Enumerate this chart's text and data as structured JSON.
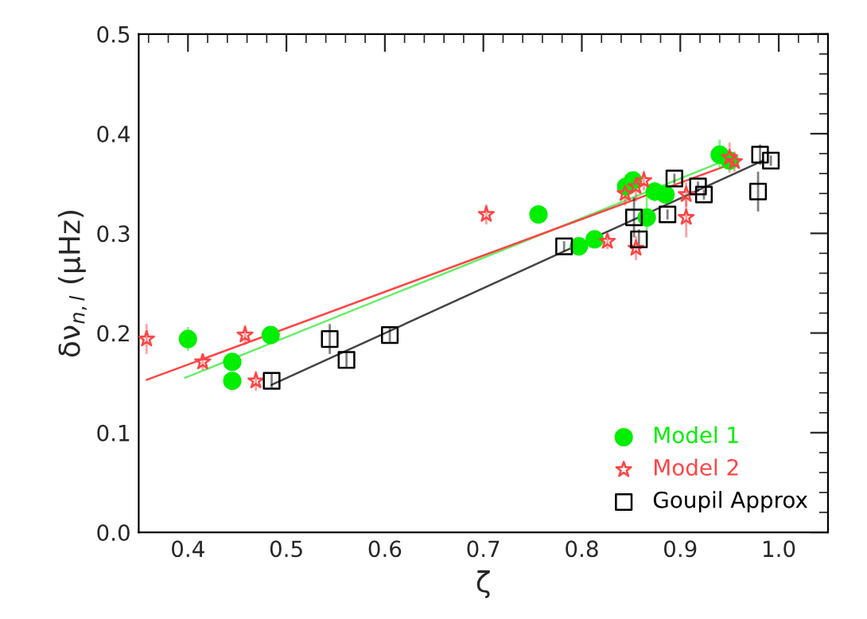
{
  "chart_data": {
    "type": "scatter",
    "xlabel": "ζ",
    "ylabel": "δν$_{n,l}$ (μHz)",
    "xlim": [
      0.35,
      1.05
    ],
    "ylim": [
      0,
      0.5
    ],
    "xticks": [
      {
        "value": 0.4,
        "label": "0.4"
      },
      {
        "value": 0.5,
        "label": "0.5"
      },
      {
        "value": 0.6,
        "label": "0.6"
      },
      {
        "value": 0.7,
        "label": "0.7"
      },
      {
        "value": 0.8,
        "label": "0.8"
      },
      {
        "value": 0.9,
        "label": "0.9"
      },
      {
        "value": 1.0,
        "label": "1.0"
      }
    ],
    "yticks": [
      {
        "value": 0,
        "label": "0.0"
      },
      {
        "value": 0.1,
        "label": "0.1"
      },
      {
        "value": 0.2,
        "label": "0.2"
      },
      {
        "value": 0.3,
        "label": "0.3"
      },
      {
        "value": 0.4,
        "label": "0.4"
      },
      {
        "value": 0.5,
        "label": "0.5"
      }
    ],
    "grid": false,
    "legend": "bottom right",
    "series": [
      {
        "name": "Model 1",
        "color": "#00ee00",
        "marker": "circle",
        "x": [
          0.4,
          0.445,
          0.445,
          0.484,
          0.756,
          0.797,
          0.813,
          0.845,
          0.852,
          0.874,
          0.866,
          0.885,
          0.94,
          0.95
        ],
        "values": [
          0.194,
          0.171,
          0.152,
          0.198,
          0.319,
          0.287,
          0.294,
          0.347,
          0.353,
          0.342,
          0.316,
          0.339,
          0.379,
          0.373
        ],
        "errors": [
          0.012,
          0.008,
          0.008,
          0.008,
          0.008,
          0.008,
          0.008,
          0.012,
          0.008,
          0.01,
          0.025,
          0.008,
          0.015,
          0.008
        ]
      },
      {
        "name": "Model 2",
        "color": "#ff4444",
        "marker": "star",
        "x": [
          0.358,
          0.415,
          0.458,
          0.469,
          0.703,
          0.826,
          0.844,
          0.855,
          0.863,
          0.855,
          0.906,
          0.906,
          0.95,
          0.955
        ],
        "values": [
          0.194,
          0.171,
          0.198,
          0.152,
          0.319,
          0.292,
          0.34,
          0.347,
          0.353,
          0.285,
          0.339,
          0.316,
          0.376,
          0.372
        ],
        "errors": [
          0.015,
          0.008,
          0.01,
          0.01,
          0.01,
          0.008,
          0.012,
          0.015,
          0.01,
          0.012,
          0.012,
          0.02,
          0.015,
          0.01
        ]
      },
      {
        "name": "Goupil Approx",
        "color": "#000000",
        "marker": "square",
        "x": [
          0.485,
          0.544,
          0.561,
          0.605,
          0.782,
          0.853,
          0.858,
          0.894,
          0.887,
          0.918,
          0.924,
          0.981,
          0.992,
          0.979
        ],
        "values": [
          0.152,
          0.194,
          0.173,
          0.198,
          0.287,
          0.316,
          0.294,
          0.355,
          0.319,
          0.347,
          0.339,
          0.379,
          0.373,
          0.342
        ],
        "errors": [
          0.008,
          0.015,
          0.008,
          0.008,
          0.005,
          0.02,
          0.01,
          0.005,
          0.005,
          0.005,
          0.005,
          0.01,
          0.005,
          0.02
        ]
      },
      {
        "type": "line",
        "color": "#66ee66",
        "x": [
          0.397,
          0.94
        ],
        "values": [
          0.155,
          0.371
        ]
      },
      {
        "type": "line",
        "color": "#ff4444",
        "x": [
          0.358,
          0.95
        ],
        "values": [
          0.153,
          0.369
        ]
      },
      {
        "type": "line",
        "color": "#444444",
        "x": [
          0.485,
          0.984
        ],
        "values": [
          0.148,
          0.373
        ]
      }
    ]
  }
}
